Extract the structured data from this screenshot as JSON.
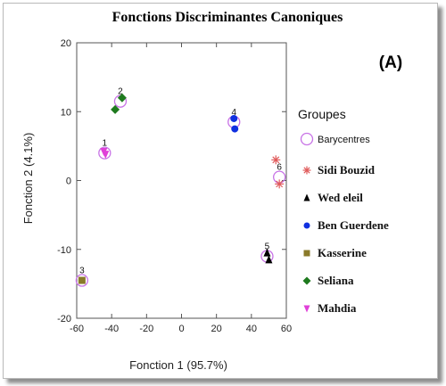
{
  "panel_label": "(A)",
  "chart_data": {
    "type": "scatter",
    "title": "Fonctions Discriminantes Canoniques",
    "xlabel": "Fonction 1 (95.7%)",
    "ylabel": "Fonction 2 (4.1%)",
    "xlim": [
      -60,
      60
    ],
    "ylim": [
      -20,
      20
    ],
    "xticks": [
      -60,
      -40,
      -20,
      0,
      20,
      40,
      60
    ],
    "yticks": [
      -20,
      -10,
      0,
      10,
      20
    ],
    "grid": false,
    "legend_title": "Groupes",
    "legend_position": "right",
    "centroids": {
      "name": "Barycentres",
      "color": "#c873e6",
      "points": [
        {
          "label": "1",
          "x": -44,
          "y": 4
        },
        {
          "label": "2",
          "x": -35,
          "y": 11.5
        },
        {
          "label": "3",
          "x": -57,
          "y": -14.5
        },
        {
          "label": "4",
          "x": 30,
          "y": 8.5
        },
        {
          "label": "5",
          "x": 49,
          "y": -11
        },
        {
          "label": "6",
          "x": 56,
          "y": 0.5
        }
      ]
    },
    "series": [
      {
        "name": "Sidi Bouzid",
        "marker": "asterisk",
        "color": "#e05a5a",
        "points": [
          [
            54,
            3
          ],
          [
            56,
            -0.5
          ]
        ]
      },
      {
        "name": "Wed eleil",
        "marker": "triangle",
        "color": "#000000",
        "points": [
          [
            49,
            -10.5
          ],
          [
            50,
            -11.5
          ]
        ]
      },
      {
        "name": "Ben Guerdene",
        "marker": "circle",
        "color": "#1030e0",
        "points": [
          [
            30,
            9
          ],
          [
            30.5,
            7.5
          ]
        ]
      },
      {
        "name": "Kasserine",
        "marker": "square",
        "color": "#8a7a2a",
        "points": [
          [
            -57,
            -14.5
          ]
        ]
      },
      {
        "name": "Seliana",
        "marker": "diamond",
        "color": "#1e7a1e",
        "points": [
          [
            -38,
            10.3
          ],
          [
            -34,
            12
          ]
        ]
      },
      {
        "name": "Mahdia",
        "marker": "triangle-down",
        "color": "#e040d8",
        "points": [
          [
            -44.5,
            4.2
          ],
          [
            -43.5,
            3.8
          ]
        ]
      }
    ]
  }
}
